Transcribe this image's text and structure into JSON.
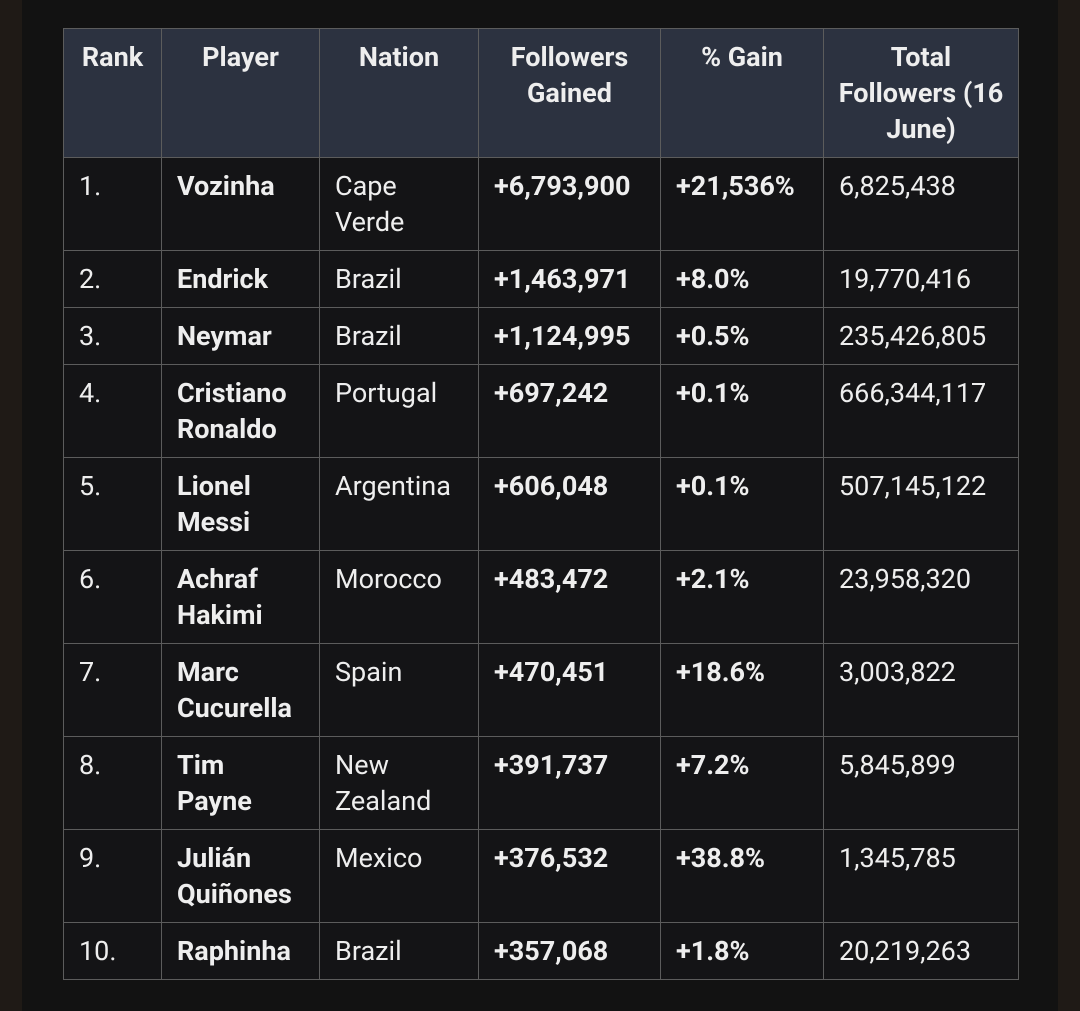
{
  "table": {
    "headers": [
      "Rank",
      "Player",
      "Nation",
      "Followers Gained",
      "% Gain",
      "Total Followers (16 June)"
    ],
    "rows": [
      [
        "1.",
        "Vozinha",
        "Cape\nVerde",
        "+6,793,900",
        "+21,536%",
        "6,825,438"
      ],
      [
        "2.",
        "Endrick",
        "Brazil",
        "+1,463,971",
        "+8.0%",
        "19,770,416"
      ],
      [
        "3.",
        "Neymar",
        "Brazil",
        "+1,124,995",
        "+0.5%",
        "235,426,805"
      ],
      [
        "4.",
        "Cristiano\nRonaldo",
        "Portugal",
        "+697,242",
        "+0.1%",
        "666,344,117"
      ],
      [
        "5.",
        "Lionel\nMessi",
        "Argentina",
        "+606,048",
        "+0.1%",
        "507,145,122"
      ],
      [
        "6.",
        "Achraf\nHakimi",
        "Morocco",
        "+483,472",
        "+2.1%",
        "23,958,320"
      ],
      [
        "7.",
        "Marc\nCucurella",
        "Spain",
        "+470,451",
        "+18.6%",
        "3,003,822"
      ],
      [
        "8.",
        "Tim\nPayne",
        "New\nZealand",
        "+391,737",
        "+7.2%",
        "5,845,899"
      ],
      [
        "9.",
        "Julián\nQuiñones",
        "Mexico",
        "+376,532",
        "+38.8%",
        "1,345,785"
      ],
      [
        "10.",
        "Raphinha",
        "Brazil",
        "+357,068",
        "+1.8%",
        "20,219,263"
      ]
    ]
  }
}
